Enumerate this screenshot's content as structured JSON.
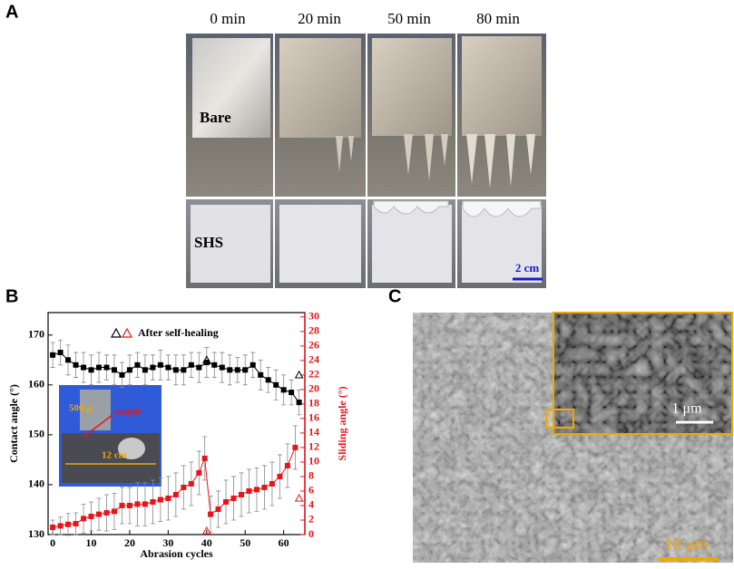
{
  "panel_labels": [
    "A",
    "B",
    "C"
  ],
  "panel_a": {
    "columns": [
      "0 min",
      "20 min",
      "50 min",
      "80 min"
    ],
    "rows": [
      "Bare",
      "SHS"
    ],
    "scale_bar": "2 cm"
  },
  "inset_b": {
    "weight": "500 g",
    "sample": "sample",
    "width": "12 cm"
  },
  "panel_c": {
    "inset_scale": "1 μm",
    "scale": "10 μm"
  },
  "chart_data": {
    "type": "line",
    "x_label": "Abrasion cycles",
    "y_label": "Contact angle (°)",
    "y2_label": "Sliding angle (°)",
    "legend": "After self-healing",
    "xlim": [
      -1.2,
      65.5
    ],
    "ylim": [
      130,
      174.5
    ],
    "y2lim": [
      0,
      30.6
    ],
    "xticks": [
      0,
      10,
      20,
      30,
      40,
      50,
      60
    ],
    "yticks": [
      130,
      140,
      150,
      160,
      170
    ],
    "y2ticks": [
      0,
      2,
      4,
      6,
      8,
      10,
      12,
      14,
      16,
      18,
      20,
      22,
      24,
      26,
      28,
      30
    ],
    "series": [
      {
        "color": "#000000",
        "marker": "square",
        "x": [
          0,
          2,
          4,
          6,
          8,
          10,
          12,
          14,
          16,
          18,
          20,
          22,
          24,
          26,
          28,
          30,
          32,
          34,
          36,
          38,
          40,
          42,
          44,
          46,
          48,
          50,
          52,
          54,
          56,
          58,
          60,
          62,
          64
        ],
        "values": [
          166,
          166.5,
          165,
          164,
          163.5,
          163,
          163.5,
          163.5,
          163,
          162,
          163,
          164,
          163,
          163.5,
          164,
          163.5,
          163,
          163,
          164,
          163.5,
          164.5,
          164,
          163.5,
          163,
          163,
          163,
          164,
          162,
          161,
          160,
          159,
          158.5,
          156.5
        ],
        "errors": [
          2.5,
          2.5,
          3,
          2.5,
          3,
          3,
          3,
          2.5,
          3,
          2.5,
          3,
          2.5,
          3,
          2.5,
          3,
          2.5,
          3,
          3,
          2.5,
          3,
          3,
          2.5,
          3,
          3,
          2.5,
          3,
          2.5,
          3,
          2.5,
          3,
          3,
          2.5,
          2.5
        ]
      },
      {
        "color": "#e8141b",
        "marker": "square",
        "axis": "y2",
        "x": [
          0,
          2,
          4,
          6,
          8,
          10,
          12,
          14,
          16,
          18,
          20,
          22,
          24,
          26,
          28,
          30,
          32,
          34,
          36,
          38,
          39.5,
          41,
          43,
          45,
          47,
          49,
          51,
          53,
          55,
          57,
          59,
          61,
          63
        ],
        "values": [
          1,
          1.2,
          1.4,
          1.5,
          2.2,
          2.5,
          2.8,
          3,
          3.2,
          4,
          4,
          4.2,
          4.2,
          4.5,
          4.8,
          5,
          5.5,
          6.5,
          7,
          8.5,
          10.5,
          2.8,
          3.5,
          4.5,
          5,
          5.5,
          6,
          6.2,
          6.5,
          7,
          8,
          9.5,
          12
        ],
        "errors": [
          1,
          1.2,
          1.5,
          1.5,
          2,
          2,
          2.2,
          2.5,
          2.5,
          2.5,
          2.5,
          3,
          3,
          3,
          3,
          3,
          3,
          3,
          3,
          3,
          3,
          2.5,
          2.5,
          3,
          3,
          3,
          3,
          3,
          3,
          3,
          3,
          3,
          3
        ]
      },
      {
        "color": "#000000",
        "marker": "triangle",
        "x": [
          40,
          64
        ],
        "values": [
          165,
          162
        ]
      },
      {
        "color": "#e8141b",
        "marker": "triangle",
        "axis": "y2",
        "x": [
          40,
          64
        ],
        "values": [
          0.5,
          5
        ]
      }
    ]
  }
}
